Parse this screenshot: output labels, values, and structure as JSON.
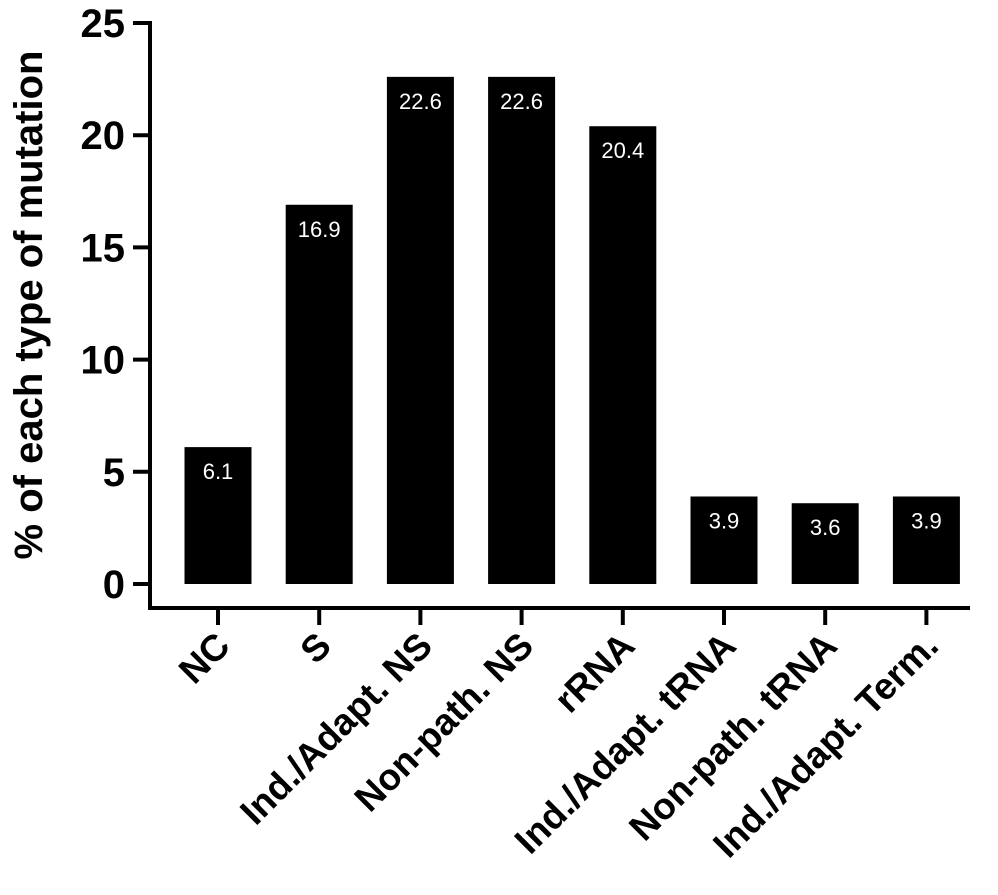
{
  "chart_data": {
    "type": "bar",
    "title": "",
    "xlabel": "",
    "ylabel": "% of each type of mutation",
    "ylim": [
      0,
      25
    ],
    "yticks": [
      "0",
      "5",
      "10",
      "15",
      "20",
      "25"
    ],
    "categories": [
      "NC",
      "S",
      "Ind./Adapt. NS",
      "Non-path. NS",
      "rRNA",
      "Ind./Adapt. tRNA",
      "Non-path. tRNA",
      "Ind./Adapt. Term."
    ],
    "values": [
      6.1,
      16.9,
      22.6,
      22.6,
      20.4,
      3.9,
      3.6,
      3.9
    ],
    "data_labels": [
      "6.1",
      "16.9",
      "22.6",
      "22.6",
      "20.4",
      "3.9",
      "3.6",
      "3.9"
    ],
    "bar_color": "#000000",
    "label_color": "#ffffff",
    "grid": false,
    "legend": "none"
  }
}
